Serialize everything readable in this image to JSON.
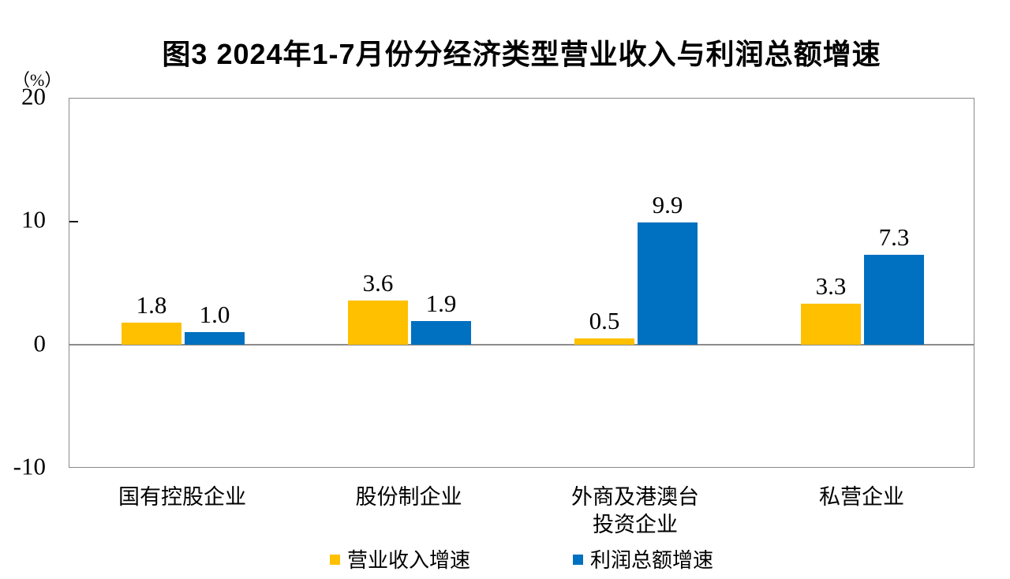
{
  "chart_data": {
    "type": "bar",
    "title": "图3 2024年1-7月份分经济类型营业收入与利润总额增速",
    "unit_label": "（%）",
    "categories": [
      "国有控股企业",
      "股份制企业",
      "外商及港澳台\n投资企业",
      "私营企业"
    ],
    "series": [
      {
        "name": "营业收入增速",
        "color": "#FFC000",
        "values": [
          1.8,
          3.6,
          0.5,
          3.3
        ]
      },
      {
        "name": "利润总额增速",
        "color": "#0070C0",
        "values": [
          1.0,
          1.9,
          9.9,
          7.3
        ]
      }
    ],
    "xlabel": "",
    "ylabel": "（%）",
    "ylim": [
      -10,
      20
    ],
    "yticks": [
      20,
      10,
      0,
      -10
    ],
    "grid": false,
    "legend_position": "bottom",
    "value_label_decimals": 1
  }
}
